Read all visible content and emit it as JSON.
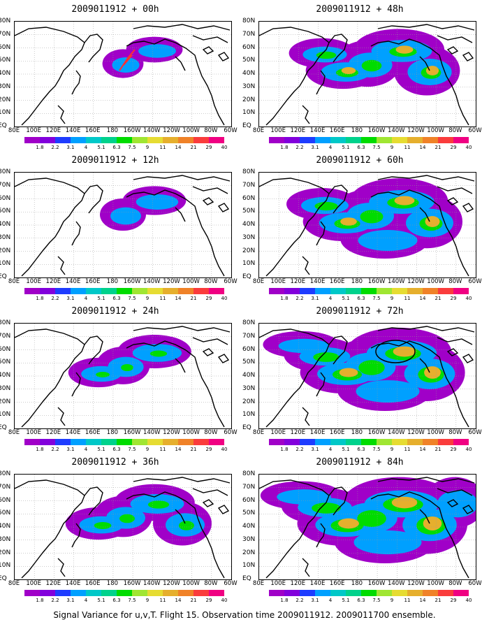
{
  "panels": [
    {
      "title": "2009011912 + 00h"
    },
    {
      "title": "2009011912 + 48h"
    },
    {
      "title": "2009011912 + 12h"
    },
    {
      "title": "2009011912 + 60h"
    },
    {
      "title": "2009011912 + 24h"
    },
    {
      "title": "2009011912 + 72h"
    },
    {
      "title": "2009011912 + 36h"
    },
    {
      "title": "2009011912 + 84h"
    }
  ],
  "lat_labels": [
    "80N",
    "70N",
    "60N",
    "50N",
    "40N",
    "30N",
    "20N",
    "10N",
    "EQ"
  ],
  "lon_labels": [
    "80E",
    "100E",
    "120E",
    "140E",
    "160E",
    "180",
    "160W",
    "140W",
    "120W",
    "100W",
    "80W",
    "60W"
  ],
  "colorbar": {
    "labels": [
      "1.8",
      "2.2",
      "3.1",
      "4",
      "5.1",
      "6.3",
      "7.5",
      "9",
      "11",
      "14",
      "21",
      "29",
      "40"
    ],
    "colors": [
      "#a000c8",
      "#8200dc",
      "#1e3cff",
      "#00a0ff",
      "#00c8c8",
      "#00d28c",
      "#00dc00",
      "#a0e632",
      "#e6dc32",
      "#e6af2d",
      "#f08228",
      "#fa3c3c",
      "#f00082"
    ]
  },
  "caption": "Signal Variance for u,v,T. Flight 15. Observation time 2009011912. 2009011700 ensemble."
}
